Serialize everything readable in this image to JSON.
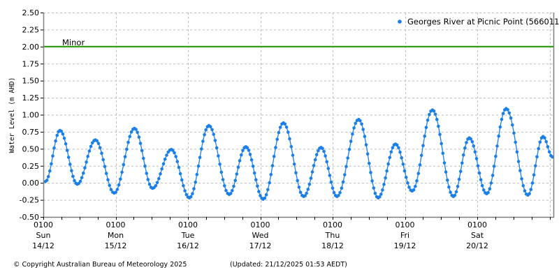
{
  "chart_data": {
    "type": "line",
    "title": "",
    "legend": {
      "entries": [
        "Georges River at Picnic Point (566011)"
      ],
      "position": "top-right"
    },
    "ylabel": "Water Level (m AHD)",
    "xlabel": "",
    "ylim": [
      -0.5,
      2.5
    ],
    "yticks": [
      "2.50",
      "2.25",
      "2.00",
      "1.75",
      "1.50",
      "1.25",
      "1.00",
      "0.75",
      "0.50",
      "0.25",
      "0.00",
      "-0.25",
      "-0.50"
    ],
    "ytick_values": [
      2.5,
      2.25,
      2.0,
      1.75,
      1.5,
      1.25,
      1.0,
      0.75,
      0.5,
      0.25,
      0.0,
      -0.25,
      -0.5
    ],
    "xticks": [
      {
        "time": "0100",
        "day": "Sun",
        "date": "14/12"
      },
      {
        "time": "0100",
        "day": "Mon",
        "date": "15/12"
      },
      {
        "time": "0100",
        "day": "Tue",
        "date": "16/12"
      },
      {
        "time": "0100",
        "day": "Wed",
        "date": "17/12"
      },
      {
        "time": "0100",
        "day": "Thu",
        "date": "18/12"
      },
      {
        "time": "0100",
        "day": "Fri",
        "date": "19/12"
      },
      {
        "time": "0100",
        "day": "Sat",
        "date": "20/12"
      }
    ],
    "grid": true,
    "threshold": {
      "label": "Minor",
      "value": 2.0,
      "color": "#2a9a0a"
    },
    "series": [
      {
        "name": "Georges River at Picnic Point (566011)",
        "color": "#1a7fe8",
        "x_unit": "days since 0100 Sun 14/12",
        "extrema": [
          {
            "x": 0.03,
            "y": 0.02
          },
          {
            "x": 0.23,
            "y": 0.77
          },
          {
            "x": 0.47,
            "y": -0.02
          },
          {
            "x": 0.72,
            "y": 0.63
          },
          {
            "x": 0.98,
            "y": -0.15
          },
          {
            "x": 1.26,
            "y": 0.8
          },
          {
            "x": 1.51,
            "y": -0.08
          },
          {
            "x": 1.77,
            "y": 0.49
          },
          {
            "x": 2.02,
            "y": -0.22
          },
          {
            "x": 2.29,
            "y": 0.84
          },
          {
            "x": 2.57,
            "y": -0.17
          },
          {
            "x": 2.8,
            "y": 0.53
          },
          {
            "x": 3.04,
            "y": -0.24
          },
          {
            "x": 3.32,
            "y": 0.88
          },
          {
            "x": 3.6,
            "y": -0.2
          },
          {
            "x": 3.84,
            "y": 0.52
          },
          {
            "x": 4.06,
            "y": -0.2
          },
          {
            "x": 4.36,
            "y": 0.93
          },
          {
            "x": 4.63,
            "y": -0.22
          },
          {
            "x": 4.87,
            "y": 0.57
          },
          {
            "x": 5.1,
            "y": -0.12
          },
          {
            "x": 5.38,
            "y": 1.07
          },
          {
            "x": 5.67,
            "y": -0.2
          },
          {
            "x": 5.89,
            "y": 0.66
          },
          {
            "x": 6.13,
            "y": -0.16
          },
          {
            "x": 6.4,
            "y": 1.09
          },
          {
            "x": 6.7,
            "y": -0.18
          },
          {
            "x": 6.91,
            "y": 0.68
          },
          {
            "x": 7.04,
            "y": 0.38
          }
        ]
      }
    ]
  },
  "footer": {
    "copyright": "© Copyright Australian Bureau of Meteorology 2025",
    "updated": "(Updated: 21/12/2025 01:53 AEDT)"
  }
}
